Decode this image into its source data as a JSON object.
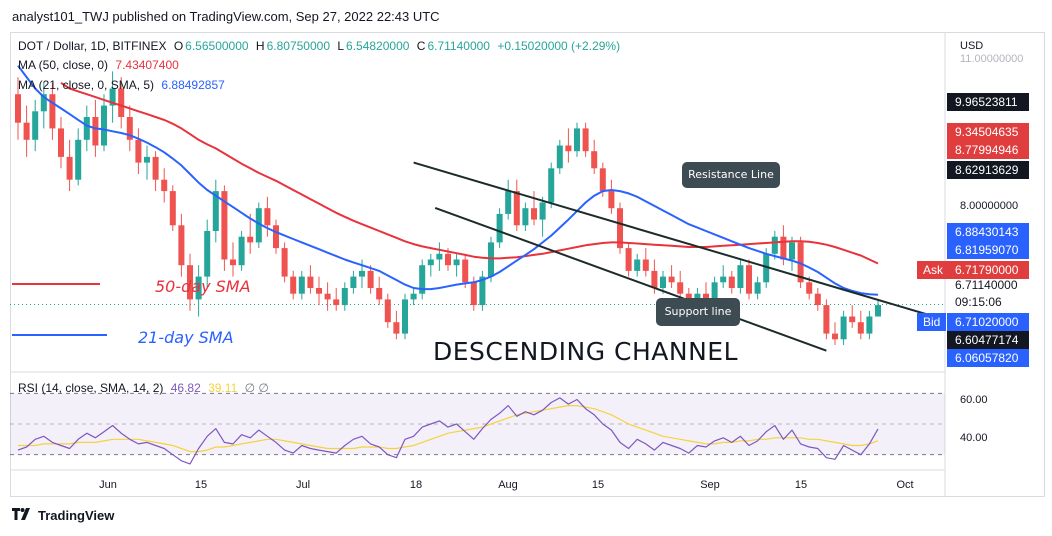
{
  "header": {
    "published_text": "analyst101_TWJ published on TradingView.com, Sep 27, 2022 22:43 UTC"
  },
  "legend": {
    "symbol": "DOT / Dollar, 1D, BITFINEX",
    "open_label": "O",
    "open": "6.56500000",
    "high_label": "H",
    "high": "6.80750000",
    "low_label": "L",
    "low": "6.54820000",
    "close_label": "C",
    "close": "6.71140000",
    "change": "+0.15020000 (+2.29%)",
    "ma50_label": "MA (50, close, 0)",
    "ma50_value": "7.43407400",
    "ma21_label": "MA (21, close, 0, SMA, 5)",
    "ma21_value": "6.88492857",
    "rsi_label": "RSI (14, close, SMA, 14, 2)",
    "rsi_value": "46.82",
    "rsi_sma_value": "39.11"
  },
  "price_axis": {
    "currency": "USD",
    "ticks": [
      "11.00000000",
      "8.00000000"
    ],
    "tags": [
      {
        "text": "9.96523811",
        "color": "#131722"
      },
      {
        "text": "9.34504635",
        "color": "#e03e3e"
      },
      {
        "text": "8.77994946",
        "color": "#e03e3e"
      },
      {
        "text": "8.62913629",
        "color": "#131722"
      },
      {
        "text": "6.88430143",
        "color": "#2962ff"
      },
      {
        "text": "6.81959070",
        "color": "#2962ff"
      },
      {
        "text": "6.71790000",
        "color": "#e03e3e"
      },
      {
        "text": "6.71140000",
        "color": "#ffffff"
      },
      {
        "text": "09:15:06",
        "color": "#ffffff"
      },
      {
        "text": "6.71020000",
        "color": "#2962ff"
      },
      {
        "text": "6.60477174",
        "color": "#131722"
      },
      {
        "text": "6.06057820",
        "color": "#2962ff"
      }
    ],
    "ask_label": "Ask",
    "bid_label": "Bid"
  },
  "rsi_axis": {
    "ticks": [
      "60.00",
      "40.00"
    ]
  },
  "time_axis": {
    "labels": [
      "Jun",
      "15",
      "Jul",
      "18",
      "Aug",
      "15",
      "Sep",
      "15",
      "Oct"
    ]
  },
  "annotations": {
    "sma50": "50-day SMA",
    "sma21": "21-day SMA",
    "resistance": "Resistance Line",
    "support": "Support line",
    "pattern": "DESCENDING  CHANNEL"
  },
  "footer": {
    "brand": "TradingView"
  },
  "colors": {
    "up": "#26a69a",
    "down": "#ef5350",
    "ma50": "#e8323c",
    "ma21": "#2962ff",
    "rsi": "#7e57c2",
    "rsi_sma": "#f5d33f"
  },
  "chart_data": {
    "type": "candlestick",
    "symbol": "DOT / Dollar",
    "interval": "1D",
    "ylim": [
      5.8,
      11.2
    ],
    "ohlc": [
      [
        10.4,
        10.7,
        9.6,
        9.9
      ],
      [
        9.9,
        10.2,
        9.3,
        9.6
      ],
      [
        9.6,
        10.3,
        9.4,
        10.1
      ],
      [
        10.1,
        10.6,
        9.8,
        10.4
      ],
      [
        10.4,
        10.6,
        9.6,
        9.8
      ],
      [
        9.8,
        10.0,
        9.1,
        9.3
      ],
      [
        9.3,
        9.6,
        8.7,
        8.9
      ],
      [
        8.9,
        9.8,
        8.8,
        9.6
      ],
      [
        9.6,
        10.2,
        9.4,
        10.0
      ],
      [
        10.0,
        10.3,
        9.3,
        9.5
      ],
      [
        9.5,
        10.4,
        9.4,
        10.2
      ],
      [
        10.2,
        10.8,
        9.9,
        10.5
      ],
      [
        10.5,
        10.7,
        9.8,
        10.0
      ],
      [
        10.0,
        10.2,
        9.4,
        9.6
      ],
      [
        9.6,
        9.8,
        9.0,
        9.2
      ],
      [
        9.2,
        9.5,
        8.9,
        9.3
      ],
      [
        9.3,
        9.4,
        8.7,
        8.9
      ],
      [
        8.9,
        9.1,
        8.5,
        8.7
      ],
      [
        8.7,
        8.8,
        8.0,
        8.1
      ],
      [
        8.1,
        8.3,
        7.2,
        7.4
      ],
      [
        7.4,
        7.6,
        6.6,
        6.8
      ],
      [
        6.8,
        7.4,
        6.5,
        7.2
      ],
      [
        7.2,
        8.2,
        7.0,
        8.0
      ],
      [
        8.0,
        8.9,
        7.8,
        8.7
      ],
      [
        8.7,
        8.8,
        7.3,
        7.5
      ],
      [
        7.5,
        7.8,
        7.2,
        7.4
      ],
      [
        7.4,
        8.0,
        7.3,
        7.9
      ],
      [
        7.9,
        8.3,
        7.6,
        7.8
      ],
      [
        7.8,
        8.5,
        7.7,
        8.4
      ],
      [
        8.4,
        8.6,
        7.9,
        8.1
      ],
      [
        8.1,
        8.2,
        7.6,
        7.7
      ],
      [
        7.7,
        7.8,
        7.1,
        7.2
      ],
      [
        7.2,
        7.3,
        6.8,
        6.9
      ],
      [
        6.9,
        7.3,
        6.8,
        7.2
      ],
      [
        7.2,
        7.4,
        6.9,
        7.0
      ],
      [
        7.0,
        7.2,
        6.7,
        6.9
      ],
      [
        6.9,
        7.1,
        6.6,
        6.8
      ],
      [
        6.8,
        7.0,
        6.6,
        6.7
      ],
      [
        6.7,
        7.1,
        6.6,
        7.0
      ],
      [
        7.0,
        7.3,
        6.9,
        7.2
      ],
      [
        7.2,
        7.5,
        7.0,
        7.3
      ],
      [
        7.3,
        7.4,
        6.9,
        7.0
      ],
      [
        7.0,
        7.2,
        6.7,
        6.8
      ],
      [
        6.8,
        6.9,
        6.3,
        6.4
      ],
      [
        6.4,
        6.6,
        6.1,
        6.2
      ],
      [
        6.2,
        6.9,
        6.1,
        6.8
      ],
      [
        6.8,
        7.0,
        6.7,
        6.9
      ],
      [
        6.9,
        7.5,
        6.8,
        7.4
      ],
      [
        7.4,
        7.6,
        7.2,
        7.5
      ],
      [
        7.5,
        7.8,
        7.3,
        7.6
      ],
      [
        7.6,
        7.7,
        7.3,
        7.4
      ],
      [
        7.4,
        7.6,
        7.2,
        7.5
      ],
      [
        7.5,
        7.6,
        7.0,
        7.1
      ],
      [
        7.1,
        7.2,
        6.6,
        6.7
      ],
      [
        6.7,
        7.3,
        6.6,
        7.2
      ],
      [
        7.2,
        7.9,
        7.1,
        7.8
      ],
      [
        7.8,
        8.4,
        7.7,
        8.3
      ],
      [
        8.3,
        8.9,
        8.2,
        8.7
      ],
      [
        8.7,
        8.9,
        8.0,
        8.1
      ],
      [
        8.1,
        8.5,
        8.0,
        8.4
      ],
      [
        8.4,
        8.7,
        8.1,
        8.2
      ],
      [
        8.2,
        8.6,
        7.9,
        8.5
      ],
      [
        8.5,
        9.2,
        8.4,
        9.1
      ],
      [
        9.1,
        9.6,
        9.0,
        9.5
      ],
      [
        9.5,
        9.8,
        9.2,
        9.4
      ],
      [
        9.4,
        9.9,
        9.3,
        9.8
      ],
      [
        9.8,
        9.9,
        9.3,
        9.4
      ],
      [
        9.4,
        9.6,
        9.0,
        9.1
      ],
      [
        9.1,
        9.2,
        8.6,
        8.7
      ],
      [
        8.7,
        8.9,
        8.3,
        8.4
      ],
      [
        8.4,
        8.5,
        7.6,
        7.7
      ],
      [
        7.7,
        7.8,
        7.2,
        7.3
      ],
      [
        7.3,
        7.6,
        7.2,
        7.5
      ],
      [
        7.5,
        7.7,
        7.2,
        7.3
      ],
      [
        7.3,
        7.5,
        6.9,
        7.0
      ],
      [
        7.0,
        7.3,
        6.9,
        7.2
      ],
      [
        7.2,
        7.4,
        7.0,
        7.1
      ],
      [
        7.1,
        7.3,
        6.8,
        6.9
      ],
      [
        6.9,
        7.0,
        6.6,
        6.7
      ],
      [
        6.7,
        7.0,
        6.6,
        6.9
      ],
      [
        6.9,
        7.1,
        6.7,
        6.8
      ],
      [
        6.8,
        7.2,
        6.7,
        7.1
      ],
      [
        7.1,
        7.4,
        7.0,
        7.2
      ],
      [
        7.2,
        7.3,
        6.9,
        7.0
      ],
      [
        7.0,
        7.5,
        6.9,
        7.4
      ],
      [
        7.4,
        7.5,
        6.8,
        6.9
      ],
      [
        6.9,
        7.2,
        6.8,
        7.1
      ],
      [
        7.1,
        7.7,
        7.0,
        7.6
      ],
      [
        7.6,
        8.0,
        7.5,
        7.9
      ],
      [
        7.9,
        8.1,
        7.4,
        7.5
      ],
      [
        7.5,
        7.9,
        7.3,
        7.8
      ],
      [
        7.8,
        7.9,
        7.0,
        7.1
      ],
      [
        7.1,
        7.2,
        6.8,
        6.9
      ],
      [
        6.9,
        7.0,
        6.6,
        6.7
      ],
      [
        6.7,
        6.8,
        6.1,
        6.2
      ],
      [
        6.2,
        6.4,
        6.0,
        6.1
      ],
      [
        6.1,
        6.6,
        6.0,
        6.5
      ],
      [
        6.5,
        6.7,
        6.3,
        6.4
      ],
      [
        6.4,
        6.6,
        6.1,
        6.2
      ],
      [
        6.2,
        6.6,
        6.1,
        6.5
      ],
      [
        6.5,
        6.8,
        6.5,
        6.7
      ]
    ],
    "ma50": [
      null,
      null,
      null,
      null,
      null,
      10.6,
      10.5,
      10.45,
      10.4,
      10.35,
      10.3,
      10.25,
      10.2,
      10.15,
      10.1,
      10.05,
      10.0,
      9.95,
      9.88,
      9.8,
      9.7,
      9.6,
      9.52,
      9.45,
      9.36,
      9.27,
      9.18,
      9.1,
      9.02,
      8.95,
      8.88,
      8.8,
      8.72,
      8.64,
      8.56,
      8.48,
      8.4,
      8.32,
      8.25,
      8.18,
      8.12,
      8.06,
      8.0,
      7.94,
      7.88,
      7.82,
      7.77,
      7.73,
      7.7,
      7.67,
      7.64,
      7.61,
      7.58,
      7.55,
      7.53,
      7.52,
      7.52,
      7.53,
      7.54,
      7.56,
      7.58,
      7.6,
      7.63,
      7.66,
      7.69,
      7.72,
      7.75,
      7.77,
      7.79,
      7.8,
      7.8,
      7.79,
      7.78,
      7.77,
      7.76,
      7.75,
      7.74,
      7.73,
      7.72,
      7.72,
      7.72,
      7.73,
      7.74,
      7.75,
      7.76,
      7.77,
      7.78,
      7.79,
      7.8,
      7.81,
      7.82,
      7.82,
      7.81,
      7.79,
      7.76,
      7.72,
      7.67,
      7.62,
      7.57,
      7.5,
      7.43
    ],
    "ma21": [
      10.9,
      10.7,
      10.5,
      10.35,
      10.25,
      10.15,
      10.05,
      9.95,
      9.85,
      9.8,
      9.78,
      9.75,
      9.72,
      9.68,
      9.62,
      9.55,
      9.47,
      9.38,
      9.27,
      9.15,
      9.0,
      8.85,
      8.72,
      8.62,
      8.52,
      8.42,
      8.32,
      8.22,
      8.13,
      8.05,
      7.98,
      7.92,
      7.86,
      7.8,
      7.74,
      7.68,
      7.62,
      7.56,
      7.5,
      7.45,
      7.4,
      7.35,
      7.3,
      7.22,
      7.14,
      7.06,
      7.0,
      6.98,
      6.98,
      7.0,
      7.03,
      7.06,
      7.08,
      7.1,
      7.14,
      7.2,
      7.28,
      7.38,
      7.48,
      7.58,
      7.68,
      7.8,
      7.92,
      8.06,
      8.2,
      8.35,
      8.5,
      8.62,
      8.7,
      8.72,
      8.7,
      8.66,
      8.6,
      8.52,
      8.44,
      8.36,
      8.28,
      8.2,
      8.12,
      8.06,
      8.0,
      7.94,
      7.88,
      7.82,
      7.76,
      7.7,
      7.65,
      7.6,
      7.56,
      7.52,
      7.48,
      7.43,
      7.36,
      7.28,
      7.18,
      7.08,
      7.0,
      6.95,
      6.91,
      6.89,
      6.88
    ],
    "rsi": [
      33,
      35,
      40,
      42,
      38,
      36,
      34,
      40,
      44,
      41,
      45,
      49,
      44,
      40,
      37,
      38,
      36,
      34,
      30,
      26,
      24,
      34,
      42,
      47,
      38,
      37,
      43,
      41,
      46,
      42,
      38,
      33,
      31,
      36,
      34,
      33,
      32,
      31,
      36,
      40,
      42,
      37,
      35,
      30,
      28,
      40,
      42,
      48,
      50,
      52,
      48,
      50,
      45,
      40,
      47,
      53,
      57,
      62,
      55,
      58,
      56,
      59,
      64,
      67,
      63,
      66,
      60,
      56,
      50,
      46,
      38,
      34,
      40,
      37,
      33,
      38,
      36,
      34,
      31,
      36,
      35,
      39,
      41,
      38,
      42,
      36,
      39,
      45,
      49,
      40,
      46,
      37,
      35,
      34,
      28,
      27,
      36,
      33,
      30,
      37,
      46.82
    ],
    "rsi_sma": [
      36,
      36,
      36,
      37,
      37,
      37,
      37,
      38,
      38,
      38,
      39,
      40,
      40,
      40,
      40,
      39,
      38,
      37,
      36,
      34,
      32,
      32,
      33,
      35,
      35,
      36,
      37,
      38,
      39,
      40,
      40,
      39,
      38,
      37,
      36,
      35,
      34,
      34,
      34,
      34,
      35,
      35,
      35,
      34,
      34,
      35,
      36,
      38,
      40,
      42,
      44,
      45,
      46,
      47,
      48,
      50,
      52,
      54,
      56,
      57,
      58,
      59,
      60,
      61,
      62,
      62,
      61,
      60,
      58,
      56,
      53,
      50,
      48,
      46,
      44,
      42,
      41,
      40,
      39,
      38,
      37,
      37,
      38,
      38,
      39,
      39,
      40,
      40,
      41,
      41,
      41,
      41,
      40,
      40,
      39,
      38,
      37,
      36,
      36,
      37,
      39.11
    ],
    "channel": {
      "resistance": {
        "from_index": 46,
        "from_price": 9.2,
        "to_index": 101,
        "to_price": 6.75
      },
      "support": {
        "from_index": 52,
        "from_price": 8.3,
        "to_index": 94,
        "to_price": 5.9
      }
    }
  }
}
